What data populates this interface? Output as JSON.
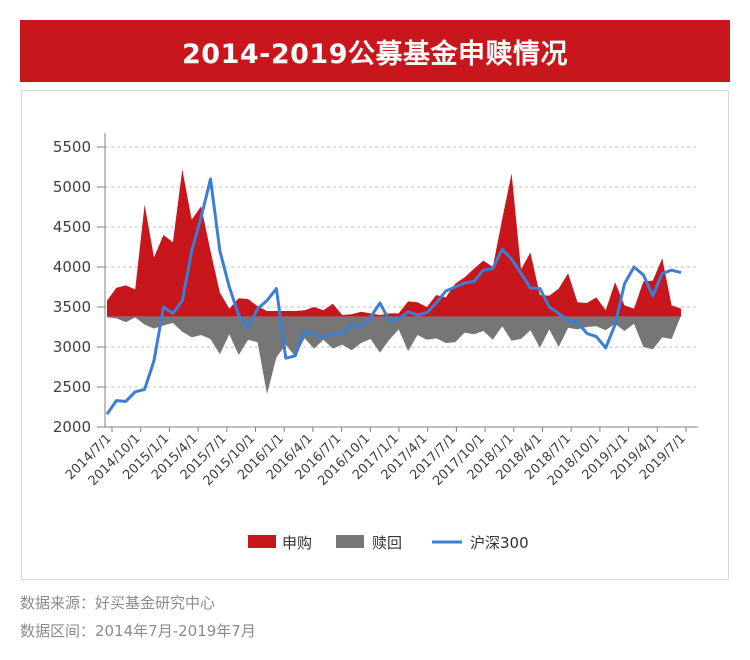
{
  "header": {
    "title": "2014-2019公募基金申赎情况"
  },
  "footer": {
    "source": "数据来源：好买基金研究中心",
    "range": "数据区间：2014年7月-2019年7月"
  },
  "colors": {
    "subscribe": "#c8161d",
    "redeem": "#767676",
    "index": "#3b7ed4",
    "banner": "#c8161d"
  },
  "chart_data": {
    "type": "area",
    "title": "",
    "xlabel": "",
    "ylabel": "",
    "ylim": [
      2000,
      5500
    ],
    "yticks": [
      2000,
      2500,
      3000,
      3500,
      4000,
      4500,
      5000,
      5500
    ],
    "baseline": 3380,
    "grid": true,
    "legend_placement": "bottom-center",
    "x_tick_labels": [
      "2014/7/1",
      "2014/10/1",
      "2015/1/1",
      "2015/4/1",
      "2015/7/1",
      "2015/10/1",
      "2016/1/1",
      "2016/4/1",
      "2016/7/1",
      "2016/10/1",
      "2017/1/1",
      "2017/4/1",
      "2017/7/1",
      "2017/10/1",
      "2018/1/1",
      "2018/4/1",
      "2018/7/1",
      "2018/10/1",
      "2019/1/1",
      "2019/4/1",
      "2019/7/1"
    ],
    "series": [
      {
        "name": "申购",
        "kind": "area-above-baseline",
        "values": [
          3580,
          3740,
          3770,
          3720,
          4780,
          4120,
          4400,
          4310,
          5220,
          4590,
          4760,
          4200,
          3680,
          3480,
          3610,
          3600,
          3510,
          3450,
          3450,
          3450,
          3450,
          3460,
          3500,
          3460,
          3540,
          3400,
          3410,
          3440,
          3420,
          3400,
          3420,
          3420,
          3570,
          3560,
          3500,
          3650,
          3620,
          3790,
          3870,
          3980,
          4080,
          4000,
          4600,
          5170,
          3970,
          4180,
          3650,
          3640,
          3730,
          3920,
          3560,
          3550,
          3620,
          3460,
          3810,
          3520,
          3480,
          3820,
          3830,
          4110,
          3520,
          3480
        ]
      },
      {
        "name": "赎回",
        "kind": "area-below-baseline",
        "values": [
          3370,
          3360,
          3310,
          3370,
          3280,
          3230,
          3270,
          3300,
          3190,
          3120,
          3150,
          3100,
          2910,
          3160,
          2900,
          3090,
          3060,
          2410,
          2870,
          3030,
          2880,
          3110,
          2980,
          3090,
          2980,
          3030,
          2960,
          3050,
          3100,
          2930,
          3090,
          3220,
          2950,
          3150,
          3090,
          3110,
          3050,
          3060,
          3180,
          3160,
          3200,
          3090,
          3260,
          3080,
          3100,
          3210,
          2990,
          3220,
          3000,
          3240,
          3220,
          3250,
          3260,
          3210,
          3290,
          3200,
          3290,
          3000,
          2970,
          3120,
          3100,
          3390
        ]
      },
      {
        "name": "沪深300",
        "kind": "line",
        "values": [
          2160,
          2330,
          2320,
          2440,
          2470,
          2830,
          3500,
          3420,
          3580,
          4200,
          4620,
          5100,
          4200,
          3750,
          3400,
          3240,
          3480,
          3580,
          3730,
          2860,
          2890,
          3200,
          3150,
          3130,
          3160,
          3170,
          3280,
          3250,
          3370,
          3550,
          3330,
          3350,
          3440,
          3400,
          3430,
          3550,
          3700,
          3750,
          3800,
          3820,
          3960,
          3980,
          4220,
          4100,
          3920,
          3740,
          3730,
          3500,
          3420,
          3330,
          3310,
          3170,
          3130,
          2990,
          3280,
          3790,
          4000,
          3900,
          3640,
          3920,
          3960,
          3930
        ]
      }
    ]
  }
}
